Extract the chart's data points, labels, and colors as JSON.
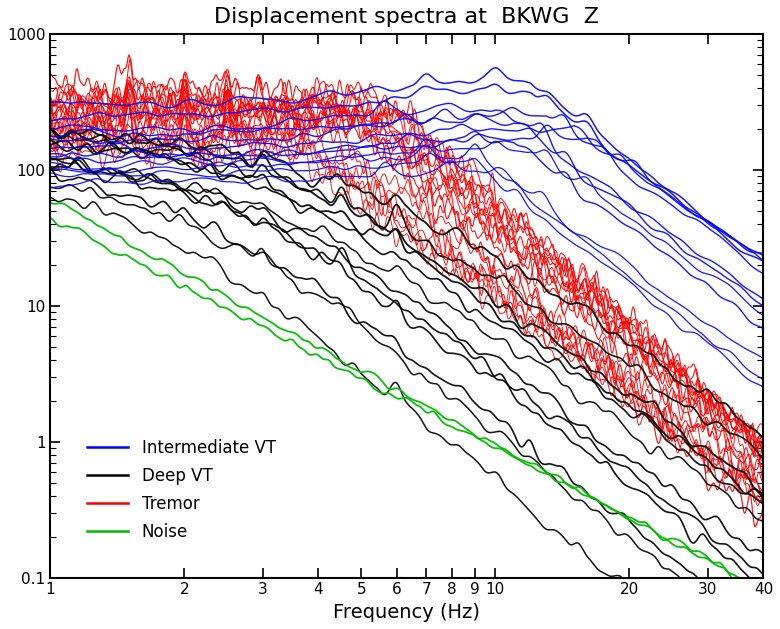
{
  "title": "Displacement spectra at  BKWG  Z",
  "xlabel": "Frequency (Hz)",
  "xlim": [
    1,
    40
  ],
  "ylim": [
    0.1,
    1000
  ],
  "background_color": "#ffffff",
  "legend_entries": [
    {
      "label": "Intermediate VT",
      "color": "blue"
    },
    {
      "label": "Deep VT",
      "color": "black"
    },
    {
      "label": "Tremor",
      "color": "red"
    },
    {
      "label": "Noise",
      "color": "green"
    }
  ],
  "colors": {
    "blue": "#0000ff",
    "black": "#000000",
    "red": "#ff0000",
    "green": "#00bb00"
  }
}
